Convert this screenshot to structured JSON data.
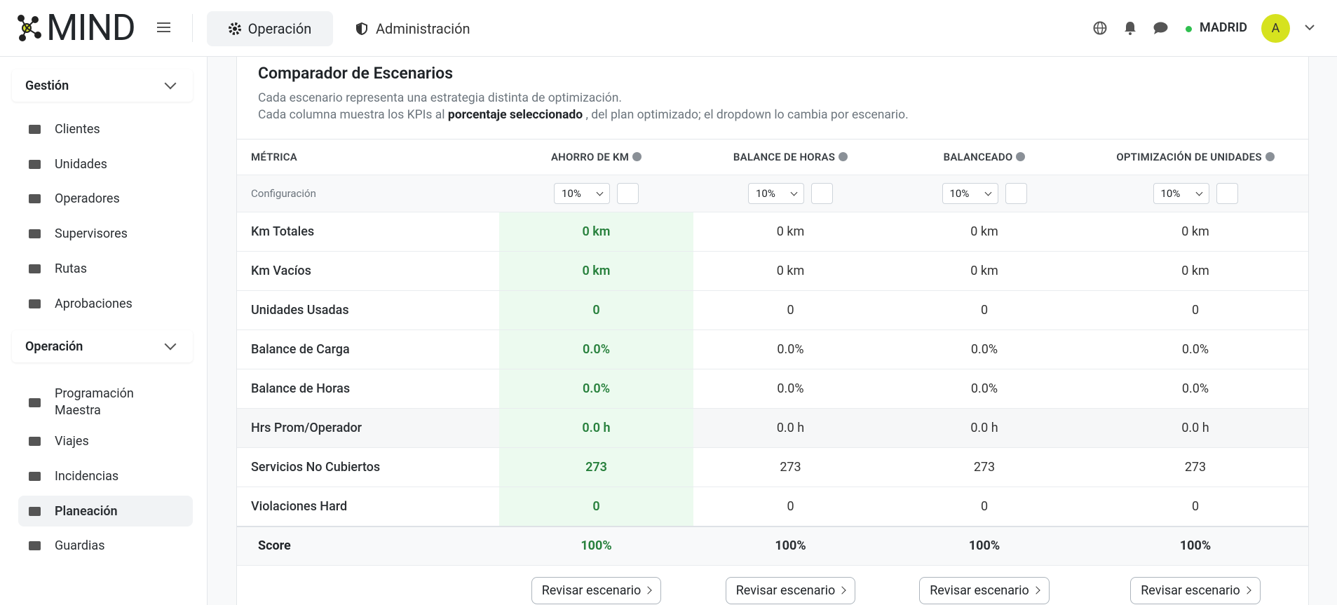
{
  "header": {
    "logo": "MIND",
    "nav": [
      "Operación",
      "Administración"
    ],
    "location": "MADRID",
    "avatar": "A"
  },
  "sidebar": {
    "sections": [
      {
        "title": "Gestión",
        "items": [
          "Clientes",
          "Unidades",
          "Operadores",
          "Supervisores",
          "Rutas",
          "Aprobaciones"
        ]
      },
      {
        "title": "Operación",
        "items": [
          "Programación Maestra",
          "Viajes",
          "Incidencias",
          "Planeación",
          "Guardias"
        ]
      }
    ],
    "active": "Planeación"
  },
  "comparator": {
    "title": "Comparador de Escenarios",
    "description_line1": "Cada escenario representa una estrategia distinta de optimización.",
    "description_line2": {
      "before": "Cada columna muestra los KPIs al",
      "bold": "porcentaje seleccionado",
      "after": ", del plan optimizado; el dropdown lo cambia por escenario."
    },
    "metric_header": "MÉTRICA",
    "scenarios": [
      "AHORRO DE KM",
      "BALANCE DE HORAS",
      "BALANCEADO",
      "OPTIMIZACIÓN DE UNIDADES"
    ],
    "config_label": "Configuración",
    "config_values": [
      "10%",
      "10%",
      "10%",
      "10%"
    ],
    "rows": [
      {
        "label": "Km Totales",
        "values": [
          "0 km",
          "0 km",
          "0 km",
          "0 km"
        ]
      },
      {
        "label": "Km Vacíos",
        "values": [
          "0 km",
          "0 km",
          "0 km",
          "0 km"
        ]
      },
      {
        "label": "Unidades Usadas",
        "values": [
          "0",
          "0",
          "0",
          "0"
        ]
      },
      {
        "label": "Balance de Carga",
        "values": [
          "0.0%",
          "0.0%",
          "0.0%",
          "0.0%"
        ]
      },
      {
        "label": "Balance de Horas",
        "values": [
          "0.0%",
          "0.0%",
          "0.0%",
          "0.0%"
        ]
      },
      {
        "label": "Hrs Prom/Operador",
        "values": [
          "0.0 h",
          "0.0 h",
          "0.0 h",
          "0.0 h"
        ]
      },
      {
        "label": "Servicios No Cubiertos",
        "values": [
          "273",
          "273",
          "273",
          "273"
        ]
      },
      {
        "label": "Violaciones Hard",
        "values": [
          "0",
          "0",
          "0",
          "0"
        ]
      }
    ],
    "score": {
      "label": "Score",
      "values": [
        "100%",
        "100%",
        "100%",
        "100%"
      ]
    },
    "review_button": "Revisar escenario"
  }
}
